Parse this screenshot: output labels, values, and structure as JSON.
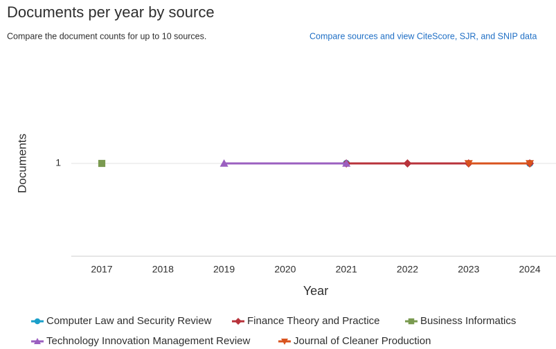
{
  "header": {
    "title": "Documents per year by source",
    "subtitle": "Compare the document counts for up to 10 sources.",
    "link": "Compare sources and view CiteScore, SJR, and SNIP data"
  },
  "chart_data": {
    "type": "line",
    "x_label": "Year",
    "y_label": "Documents",
    "xlim": [
      2016.5,
      2024.5
    ],
    "xticks": [
      2017,
      2018,
      2019,
      2020,
      2021,
      2022,
      2023,
      2024
    ],
    "ylim": [
      0,
      2
    ],
    "yticks": [
      1
    ],
    "grid": true,
    "series": [
      {
        "name": "Computer Law and Security Review",
        "color": "#1a9fc9",
        "marker": "circle",
        "x": [
          2021,
          2024
        ],
        "values": [
          1,
          1
        ]
      },
      {
        "name": "Finance Theory and Practice",
        "color": "#b8333b",
        "marker": "diamond",
        "x": [
          2021,
          2022,
          2023,
          2024
        ],
        "values": [
          1,
          1,
          1,
          1
        ]
      },
      {
        "name": "Business Informatics",
        "color": "#7a9a50",
        "marker": "square",
        "x": [
          2017
        ],
        "values": [
          1
        ]
      },
      {
        "name": "Technology Innovation Management Review",
        "color": "#9b5fc0",
        "marker": "triangle",
        "x": [
          2019,
          2021
        ],
        "values": [
          1,
          1
        ]
      },
      {
        "name": "Journal of Cleaner Production",
        "color": "#d9531e",
        "marker": "triangle-down",
        "x": [
          2023,
          2024
        ],
        "values": [
          1,
          1
        ]
      }
    ]
  }
}
